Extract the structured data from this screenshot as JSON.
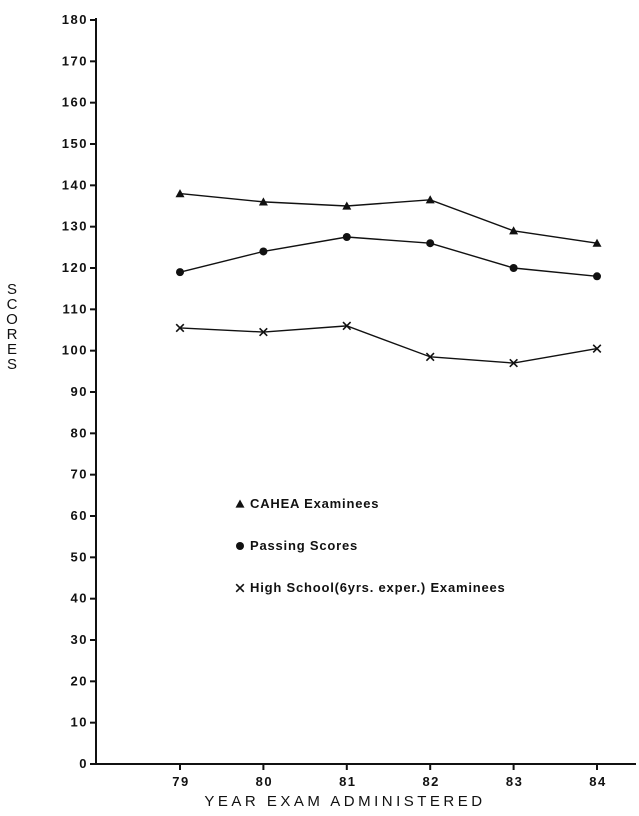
{
  "chart_data": {
    "type": "line",
    "title": "",
    "xlabel": "YEAR EXAM ADMINISTERED",
    "ylabel": "SCORES",
    "categories": [
      "79",
      "80",
      "81",
      "82",
      "83",
      "84"
    ],
    "y_ticks": [
      "0",
      "10",
      "20",
      "30",
      "40",
      "50",
      "60",
      "70",
      "80",
      "90",
      "100",
      "110",
      "120",
      "130",
      "140",
      "150",
      "160",
      "170",
      "180"
    ],
    "ylim": [
      0,
      180
    ],
    "grid": false,
    "legend_position": "center-left",
    "series": [
      {
        "name": "CAHEA Examinees",
        "marker": "triangle",
        "values": [
          138,
          136,
          135,
          136.5,
          129,
          126
        ]
      },
      {
        "name": "Passing Scores",
        "marker": "circle",
        "values": [
          119,
          124,
          127.5,
          126,
          120,
          118
        ]
      },
      {
        "name": "High School (6 yrs. exper.) Examinees",
        "display_name": "High School(6yrs. exper.) Examinees",
        "marker": "x",
        "values": [
          105.5,
          104.5,
          106,
          98.5,
          97,
          100.5
        ]
      }
    ],
    "colors": {
      "ink": "#111111",
      "background": "#ffffff"
    }
  }
}
